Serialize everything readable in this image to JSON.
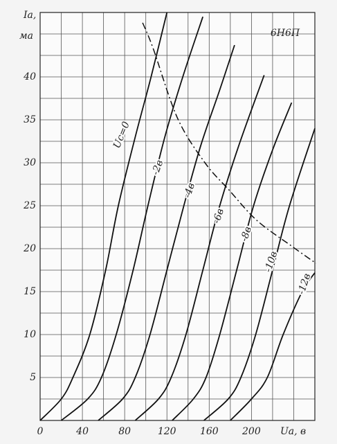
{
  "chart_data": {
    "type": "line",
    "title": "6Н6П",
    "y_label": "Iа,",
    "y_unit": "ма",
    "x_label": "Uа, в",
    "xlim": [
      0,
      260
    ],
    "ylim": [
      0,
      47.5
    ],
    "xticks": [
      0,
      40,
      80,
      120,
      160,
      200
    ],
    "yticks": [
      5,
      10,
      15,
      20,
      25,
      30,
      35,
      40
    ],
    "grid": {
      "x_step": 20,
      "y_step": 2.5
    },
    "color": "#111111",
    "series": [
      {
        "name": "Uс=0",
        "x": [
          0,
          20,
          31,
          47,
          62,
          74,
          90,
          105,
          120
        ],
        "values": [
          0,
          2.5,
          5,
          10,
          17.5,
          25,
          33,
          40,
          47.5
        ]
      },
      {
        "name": "-2в",
        "x": [
          20,
          45,
          58,
          72,
          88,
          102,
          118,
          135,
          154
        ],
        "values": [
          0,
          2.5,
          5,
          10,
          17.5,
          25,
          33,
          40,
          47
        ]
      },
      {
        "name": "-4в",
        "x": [
          55,
          78,
          90,
          104,
          120,
          136,
          152,
          170,
          184
        ],
        "values": [
          0,
          2.5,
          5,
          10,
          17.5,
          25,
          32,
          38.5,
          43.7
        ]
      },
      {
        "name": "-6в",
        "x": [
          90,
          112,
          124,
          138,
          154,
          170,
          188,
          212
        ],
        "values": [
          0,
          2.5,
          5,
          10,
          17.5,
          25,
          32,
          40.2
        ]
      },
      {
        "name": "-8в",
        "x": [
          125,
          145,
          157,
          170,
          186,
          202,
          220,
          238
        ],
        "values": [
          0,
          2.5,
          5,
          10,
          17.5,
          25,
          31.5,
          37
        ]
      },
      {
        "name": "-10в",
        "x": [
          155,
          178,
          190,
          204,
          220,
          236,
          260
        ],
        "values": [
          0,
          2.5,
          5,
          10,
          17.5,
          25,
          34
        ]
      },
      {
        "name": "-12в",
        "x": [
          180,
          200,
          215,
          230,
          248,
          260
        ],
        "values": [
          0,
          2.5,
          5,
          10,
          15,
          17.2
        ]
      }
    ],
    "limit_line": {
      "style": "dashdot",
      "x": [
        97,
        107,
        130,
        156,
        179,
        205,
        238,
        261
      ],
      "values": [
        46.3,
        43.3,
        35.2,
        30,
        26.8,
        23.3,
        20.3,
        18.3
      ]
    }
  }
}
